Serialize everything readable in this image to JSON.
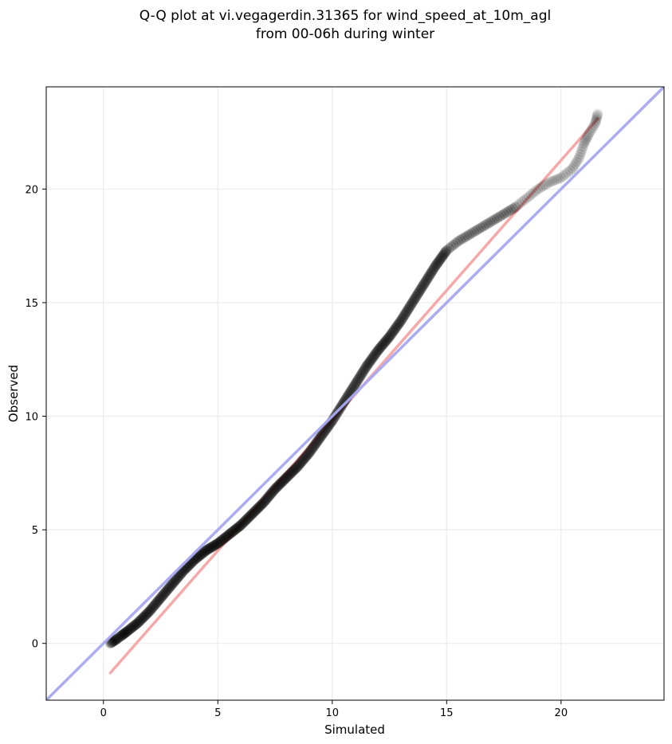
{
  "chart_data": {
    "type": "scatter",
    "title": [
      "Q-Q plot at vi.vegagerdin.31365 for wind_speed_at_10m_agl",
      "from 00-06h during winter"
    ],
    "xlabel": "Simulated",
    "ylabel": "Observed",
    "xlim": [
      -2.5,
      24.5
    ],
    "ylim": [
      -2.5,
      24.5
    ],
    "xticks": [
      0,
      5,
      10,
      15,
      20
    ],
    "yticks": [
      0,
      5,
      10,
      15,
      20
    ],
    "grid": true,
    "series": [
      {
        "kind": "points",
        "color": "#000000",
        "x": [
          0.3,
          0.6,
          1.0,
          1.5,
          2.0,
          2.5,
          3.0,
          3.5,
          4.0,
          4.5,
          5.0,
          5.5,
          6.0,
          6.5,
          7.0,
          7.5,
          8.0,
          8.5,
          9.0,
          9.5,
          10.0,
          10.5,
          11.0,
          11.5,
          12.0,
          12.5,
          13.0,
          13.5,
          14.0,
          14.5,
          15.0,
          15.5,
          16.0,
          16.5,
          17.0,
          17.5,
          18.0,
          18.5,
          19.0,
          19.5,
          20.0,
          20.5,
          20.8,
          21.0,
          21.2,
          21.5,
          21.6
        ],
        "y": [
          0.0,
          0.2,
          0.5,
          0.9,
          1.4,
          2.0,
          2.6,
          3.2,
          3.7,
          4.1,
          4.4,
          4.8,
          5.2,
          5.7,
          6.2,
          6.8,
          7.3,
          7.8,
          8.4,
          9.1,
          9.8,
          10.6,
          11.4,
          12.2,
          12.9,
          13.5,
          14.2,
          15.0,
          15.8,
          16.6,
          17.3,
          17.7,
          18.0,
          18.3,
          18.6,
          18.9,
          19.2,
          19.6,
          20.0,
          20.3,
          20.5,
          20.9,
          21.4,
          22.0,
          22.4,
          22.9,
          23.3
        ]
      },
      {
        "kind": "fit-line",
        "color": "#f5a0a0",
        "x": [
          0.3,
          21.6
        ],
        "y": [
          -1.3,
          23.1
        ]
      },
      {
        "kind": "identity-line",
        "color": "#a8a8f0",
        "x": [
          -2.5,
          24.5
        ],
        "y": [
          -2.5,
          24.5
        ]
      }
    ]
  }
}
